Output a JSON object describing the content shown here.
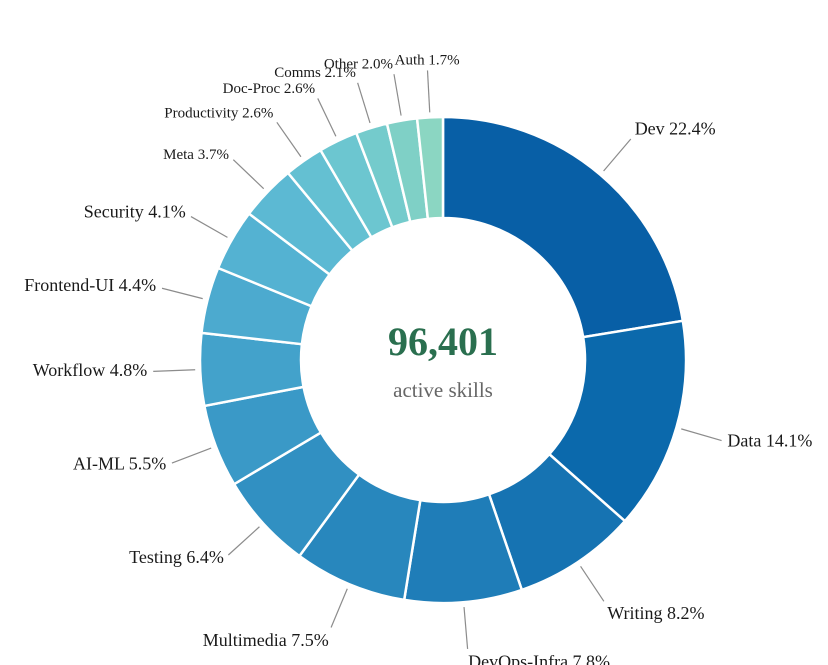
{
  "chart_data": {
    "type": "pie",
    "variant": "donut",
    "center_value": "96,401",
    "center_caption": "active skills",
    "slices": [
      {
        "label": "Dev 22.4%",
        "value": 22.4,
        "color": "#085fa6"
      },
      {
        "label": "Data 14.1%",
        "value": 14.1,
        "color": "#0b69ac"
      },
      {
        "label": "Writing 8.2%",
        "value": 8.2,
        "color": "#1673b2"
      },
      {
        "label": "DevOps-Infra 7.8%",
        "value": 7.8,
        "color": "#1f7db8"
      },
      {
        "label": "Multimedia 7.5%",
        "value": 7.5,
        "color": "#2887bd"
      },
      {
        "label": "Testing 6.4%",
        "value": 6.4,
        "color": "#3190c2"
      },
      {
        "label": "AI-ML 5.5%",
        "value": 5.5,
        "color": "#3a99c7"
      },
      {
        "label": "Workflow 4.8%",
        "value": 4.8,
        "color": "#43a2cb"
      },
      {
        "label": "Frontend-UI 4.4%",
        "value": 4.4,
        "color": "#4caacf"
      },
      {
        "label": "Security 4.1%",
        "value": 4.1,
        "color": "#54b2d2"
      },
      {
        "label": "Meta 3.7%",
        "value": 3.7,
        "color": "#5cb9d3"
      },
      {
        "label": "Productivity 2.6%",
        "value": 2.6,
        "color": "#64c0d2"
      },
      {
        "label": "Doc-Proc 2.6%",
        "value": 2.6,
        "color": "#6cc6d0"
      },
      {
        "label": "Comms 2.1%",
        "value": 2.1,
        "color": "#74cbcc"
      },
      {
        "label": "Other 2.0%",
        "value": 2.0,
        "color": "#7fd0c6"
      },
      {
        "label": "Auth 1.7%",
        "value": 1.7,
        "color": "#8bd6c2"
      }
    ],
    "center_value_color": "#2a6f4f"
  }
}
